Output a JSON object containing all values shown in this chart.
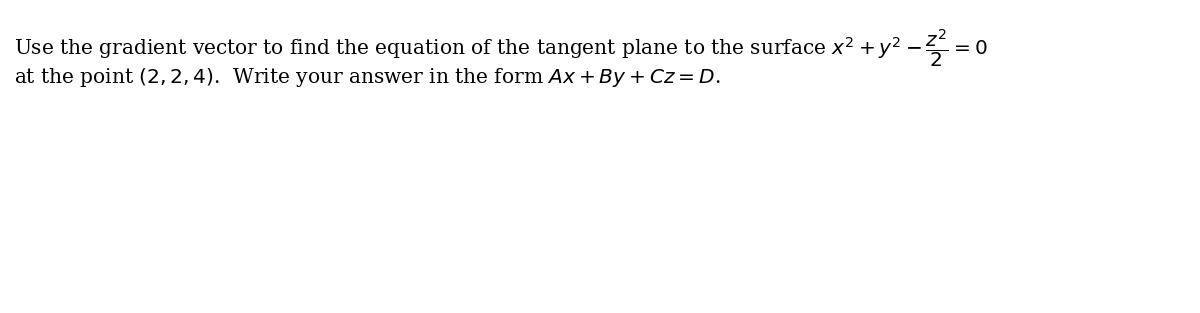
{
  "line1": "Use the gradient vector to find the equation of the tangent plane to the surface $x^2 + y^2 - \\dfrac{z^2}{2} = 0$",
  "line2": "at the point $(2,2,4)$.  Write your answer in the form $Ax + By + Cz = D$.",
  "background_color": "#ffffff",
  "text_color": "#000000",
  "fontsize": 14.5,
  "fig_width": 12.0,
  "fig_height": 3.13,
  "dpi": 100
}
